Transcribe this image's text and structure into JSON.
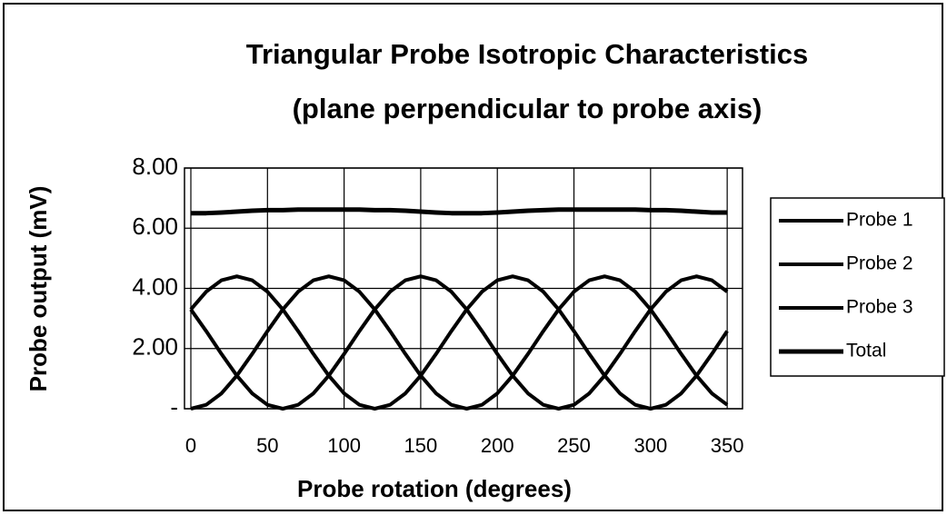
{
  "chart_data": {
    "type": "line",
    "title": "Triangular Probe Isotropic Characteristics",
    "subtitle": "(plane perpendicular to probe axis)",
    "x_label": "Probe rotation (degrees)",
    "y_label": "Probe output (mV)",
    "x": [
      0,
      10,
      20,
      30,
      40,
      50,
      60,
      70,
      80,
      90,
      100,
      110,
      120,
      130,
      140,
      150,
      160,
      170,
      180,
      190,
      200,
      210,
      220,
      230,
      240,
      250,
      260,
      270,
      280,
      290,
      300,
      310,
      320,
      330,
      340,
      350
    ],
    "series": [
      {
        "name": "Probe 1",
        "color": "#000000",
        "values": [
          0,
          0.13,
          0.51,
          1.1,
          1.82,
          2.58,
          3.3,
          3.89,
          4.27,
          4.4,
          4.27,
          3.89,
          3.3,
          2.58,
          1.82,
          1.1,
          0.51,
          0.13,
          0,
          0.13,
          0.51,
          1.1,
          1.82,
          2.58,
          3.3,
          3.89,
          4.27,
          4.4,
          4.27,
          3.89,
          3.3,
          2.58,
          1.82,
          1.1,
          0.51,
          0.13
        ]
      },
      {
        "name": "Probe 2",
        "color": "#000000",
        "values": [
          3.3,
          2.58,
          1.82,
          1.1,
          0.51,
          0.13,
          0,
          0.13,
          0.51,
          1.1,
          1.82,
          2.58,
          3.3,
          3.89,
          4.27,
          4.4,
          4.27,
          3.89,
          3.3,
          2.58,
          1.82,
          1.1,
          0.51,
          0.13,
          0,
          0.13,
          0.51,
          1.1,
          1.82,
          2.58,
          3.3,
          3.89,
          4.27,
          4.4,
          4.27,
          3.89
        ]
      },
      {
        "name": "Probe 3",
        "color": "#000000",
        "values": [
          3.3,
          3.89,
          4.27,
          4.4,
          4.27,
          3.89,
          3.3,
          2.58,
          1.82,
          1.1,
          0.51,
          0.13,
          0,
          0.13,
          0.51,
          1.1,
          1.82,
          2.58,
          3.3,
          3.89,
          4.27,
          4.4,
          4.27,
          3.89,
          3.3,
          2.58,
          1.82,
          1.1,
          0.51,
          0.13,
          0,
          0.13,
          0.51,
          1.1,
          1.82,
          2.58
        ]
      },
      {
        "name": "Total",
        "color": "#000000",
        "values": [
          6.5,
          6.5,
          6.52,
          6.55,
          6.58,
          6.6,
          6.6,
          6.62,
          6.62,
          6.62,
          6.62,
          6.62,
          6.6,
          6.6,
          6.58,
          6.55,
          6.52,
          6.5,
          6.5,
          6.5,
          6.52,
          6.55,
          6.58,
          6.6,
          6.62,
          6.62,
          6.62,
          6.62,
          6.62,
          6.62,
          6.6,
          6.6,
          6.58,
          6.55,
          6.52,
          6.52
        ]
      }
    ],
    "xlim": [
      0,
      360
    ],
    "xticks": [
      0,
      50,
      100,
      150,
      200,
      250,
      300,
      350
    ],
    "ylim": [
      0,
      8
    ],
    "yticks": [
      {
        "value": 0,
        "label": "-"
      },
      {
        "value": 2,
        "label": "2.00"
      },
      {
        "value": 4,
        "label": "4.00"
      },
      {
        "value": 6,
        "label": "6.00"
      },
      {
        "value": 8,
        "label": "8.00"
      }
    ],
    "grid": true,
    "legend": "right"
  }
}
